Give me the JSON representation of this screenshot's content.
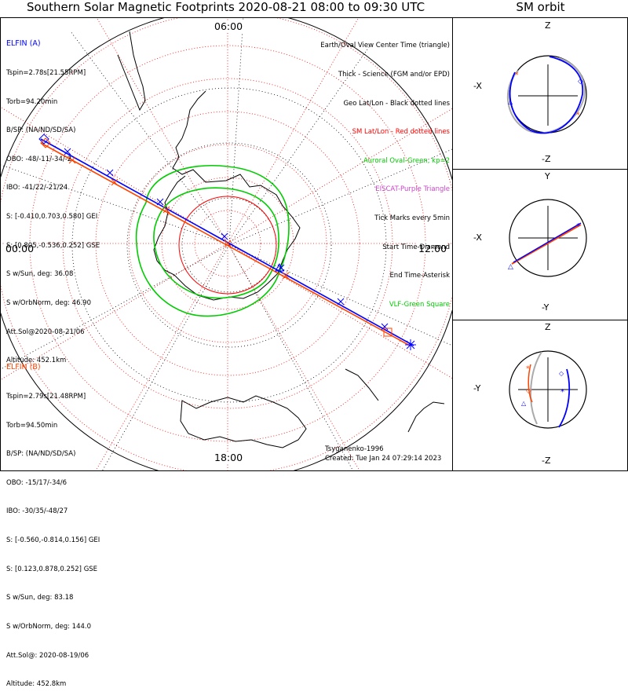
{
  "title": "Southern Solar Magnetic Footprints 2020-08-21 08:00 to 09:30 UTC",
  "orbit_title": "SM orbit",
  "elfin_a": {
    "header": "ELFIN (A)",
    "lines": [
      "Tspin=2.78s[21.55RPM]",
      "Torb=94.20min",
      "B/SP: (NA/ND/SD/SA)",
      "OBO: -48/-11/-34/-2",
      "IBO: -41/22/-21/24",
      "S: [-0.410,0.703,0.580] GEI",
      "S: [0.805,-0.536,0.252] GSE",
      "S w/Sun, deg: 36.08",
      "S w/OrbNorm, deg: 46.90",
      "Att.Sol@2020-08-21/06",
      "Altitude: 452.1km"
    ]
  },
  "elfin_b": {
    "header": "ELFIN (B)",
    "lines": [
      "Tspin=2.79s[21.48RPM]",
      "Torb=94.50min",
      "B/SP: (NA/ND/SD/SA)",
      "OBO: -15/17/-34/6",
      "IBO: -30/35/-48/27",
      "S: [-0.560,-0.814,0.156] GEI",
      "S: [0.123,0.878,0.252] GSE",
      "S w/Sun, deg: 83.18",
      "S w/OrbNorm, deg: 144.0",
      "Att.Sol@: 2020-08-19/06",
      "Altitude: 452.8km"
    ]
  },
  "legend": [
    {
      "text": "Earth/Oval View Center Time (triangle)",
      "color": "#000000"
    },
    {
      "text": "Thick - Science (FGM and/or EPD)",
      "color": "#000000"
    },
    {
      "text": "Geo Lat/Lon - Black dotted lines",
      "color": "#000000"
    },
    {
      "text": "SM Lat/Lon - Red dotted lines",
      "color": "#ff0000"
    },
    {
      "text": "Auroral Oval-Green, kp=2",
      "color": "#00cc00"
    },
    {
      "text": "EISCAT-Purple Triangle",
      "color": "#cc44cc"
    },
    {
      "text": "Tick Marks every 5min",
      "color": "#000000"
    },
    {
      "text": "Start Time-Diamond",
      "color": "#000000"
    },
    {
      "text": "End Time-Asterisk",
      "color": "#000000"
    },
    {
      "text": "VLF-Green Square",
      "color": "#00cc00"
    }
  ],
  "mlt_labels": {
    "top": "06:00",
    "left": "00:00",
    "right": "12:00",
    "bottom": "18:00"
  },
  "credit": "Tsyganenko-1996",
  "created": "Created: Tue Jan 24 07:29:14 2023",
  "orbit_panels": [
    {
      "top": "Z",
      "bottom": "-Z",
      "left": "-X",
      "right": ""
    },
    {
      "top": "Y",
      "bottom": "-Y",
      "left": "-X",
      "right": ""
    },
    {
      "top": "Z",
      "bottom": "-Z",
      "left": "-Y",
      "right": ""
    }
  ],
  "colors": {
    "elfin_a": "#0000ff",
    "elfin_b": "#ff4400",
    "oval": "#00cc00",
    "sm_grid": "#ff0000"
  }
}
